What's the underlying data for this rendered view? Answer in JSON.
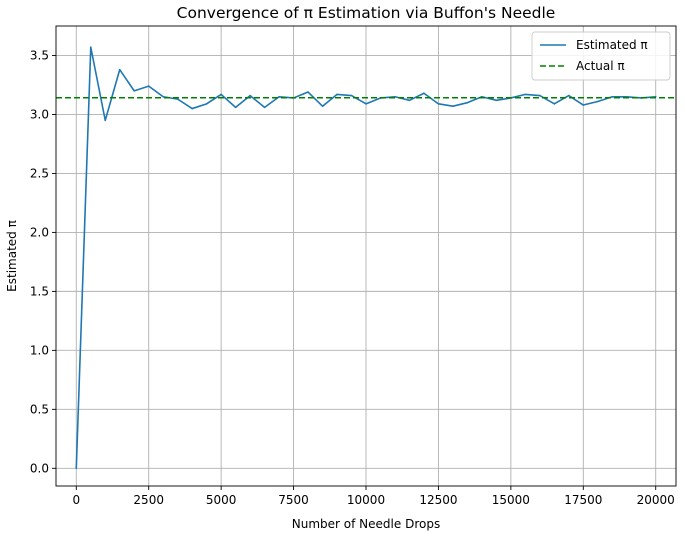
{
  "chart_data": {
    "type": "line",
    "title": "Convergence of π Estimation via Buffon's Needle",
    "xlabel": "Number of Needle Drops",
    "ylabel": "Estimated π",
    "xlim": [
      -700,
      20700
    ],
    "ylim": [
      -0.15,
      3.75
    ],
    "xticks": [
      0,
      2500,
      5000,
      7500,
      10000,
      12500,
      15000,
      17500,
      20000
    ],
    "xtick_labels": [
      "0",
      "2500",
      "5000",
      "7500",
      "10000",
      "12500",
      "15000",
      "17500",
      "20000"
    ],
    "yticks": [
      0.0,
      0.5,
      1.0,
      1.5,
      2.0,
      2.5,
      3.0,
      3.5
    ],
    "ytick_labels": [
      "0.0",
      "0.5",
      "1.0",
      "1.5",
      "2.0",
      "2.5",
      "3.0",
      "3.5"
    ],
    "grid": true,
    "legend_position": "top-right",
    "series": [
      {
        "name": "Estimated π",
        "color": "#1f77b4",
        "style": "solid",
        "x": [
          0,
          500,
          1000,
          1500,
          2000,
          2500,
          3000,
          3500,
          4000,
          4500,
          5000,
          5500,
          6000,
          6500,
          7000,
          7500,
          8000,
          8500,
          9000,
          9500,
          10000,
          10500,
          11000,
          11500,
          12000,
          12500,
          13000,
          13500,
          14000,
          14500,
          15000,
          15500,
          16000,
          16500,
          17000,
          17500,
          18000,
          18500,
          19000,
          19500,
          20000
        ],
        "values": [
          0.0,
          3.57,
          2.95,
          3.38,
          3.2,
          3.24,
          3.15,
          3.13,
          3.05,
          3.09,
          3.17,
          3.06,
          3.16,
          3.06,
          3.15,
          3.14,
          3.19,
          3.07,
          3.17,
          3.16,
          3.09,
          3.14,
          3.15,
          3.12,
          3.18,
          3.09,
          3.07,
          3.1,
          3.15,
          3.12,
          3.14,
          3.17,
          3.16,
          3.09,
          3.16,
          3.08,
          3.11,
          3.15,
          3.15,
          3.14,
          3.15
        ]
      },
      {
        "name": "Actual π",
        "color": "#008000",
        "style": "dashed",
        "hline": 3.14159
      }
    ]
  }
}
